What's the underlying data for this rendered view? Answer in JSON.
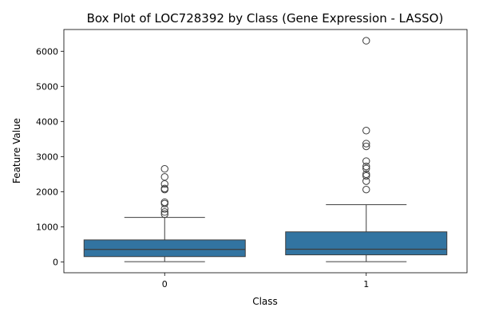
{
  "chart_data": {
    "type": "box",
    "title": "Box Plot of LOC728392 by Class (Gene Expression - LASSO)",
    "xlabel": "Class",
    "ylabel": "Feature Value",
    "categories": [
      "0",
      "1"
    ],
    "ylim": [
      -310,
      6620
    ],
    "yticks": [
      0,
      1000,
      2000,
      3000,
      4000,
      5000,
      6000
    ],
    "grid": false,
    "box_color": "#3274a1",
    "edge_color": "#3d3d3d",
    "boxes": [
      {
        "category": "0",
        "whisker_low": 5,
        "q1": 150,
        "median": 355,
        "q3": 625,
        "whisker_high": 1265,
        "outliers": [
          1360,
          1420,
          1510,
          1660,
          1700,
          2060,
          2090,
          2220,
          2420,
          2650
        ]
      },
      {
        "category": "1",
        "whisker_low": 5,
        "q1": 200,
        "median": 360,
        "q3": 855,
        "whisker_high": 1630,
        "outliers": [
          2060,
          2300,
          2450,
          2500,
          2660,
          2720,
          2870,
          3290,
          3370,
          3740,
          6300
        ]
      }
    ]
  }
}
